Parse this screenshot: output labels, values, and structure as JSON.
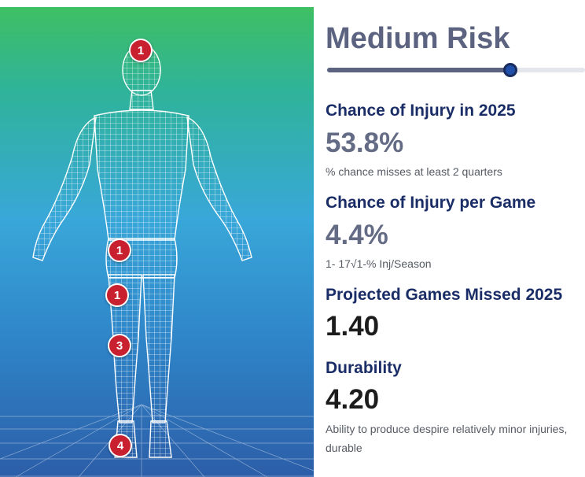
{
  "body_map": {
    "markers": [
      {
        "name": "head",
        "count": "1"
      },
      {
        "name": "hip",
        "count": "1"
      },
      {
        "name": "thigh",
        "count": "1"
      },
      {
        "name": "knee",
        "count": "3"
      },
      {
        "name": "foot",
        "count": "4"
      }
    ],
    "colors": {
      "marker": "#c8202f",
      "wireframe": "#ffffff"
    }
  },
  "risk": {
    "title": "Medium Risk",
    "level_fraction": 0.71,
    "colors": {
      "fill": "#5b6380",
      "handle": "#1f4fa8"
    }
  },
  "stats": {
    "injury_chance": {
      "label": "Chance of Injury in 2025",
      "value": "53.8%",
      "note": "% chance misses at least 2 quarters"
    },
    "per_game": {
      "label": "Chance of Injury per Game",
      "value": "4.4%",
      "note": "1- 17√1-% Inj/Season"
    },
    "games_missed": {
      "label": "Projected Games Missed 2025",
      "value": "1.40"
    },
    "durability": {
      "label": "Durability",
      "value": "4.20",
      "note": "Ability to produce despire relatively minor injuries, durable"
    }
  }
}
